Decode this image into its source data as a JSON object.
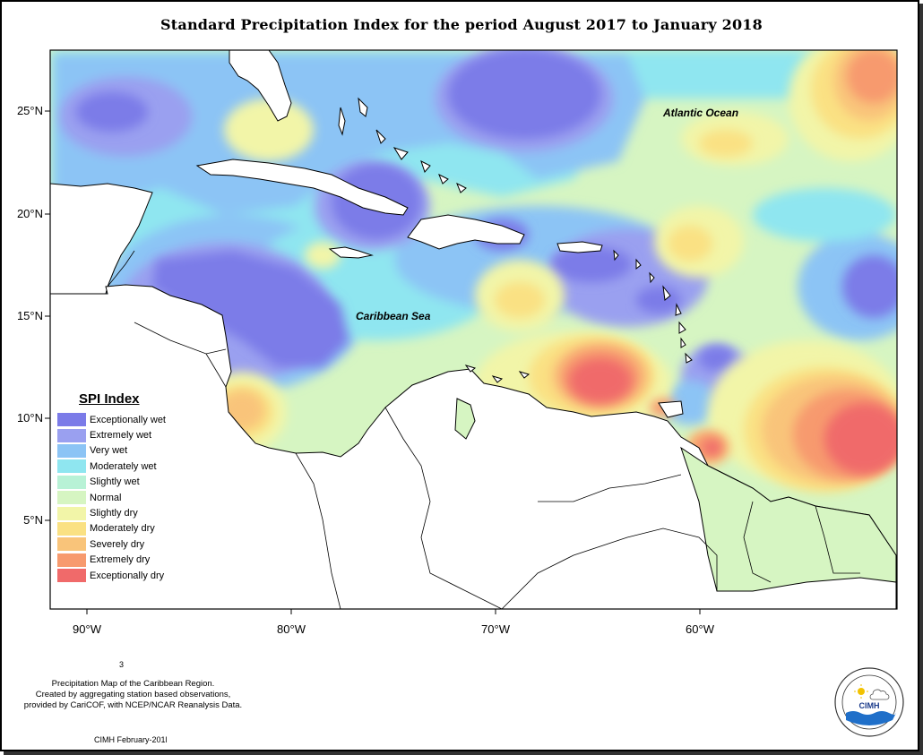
{
  "title": "Standard Precipitation Index for the period August 2017 to January 2018",
  "axes": {
    "y_ticks": [
      "25°N",
      "20°N",
      "15°N",
      "10°N",
      "5°N"
    ],
    "x_ticks": [
      "90°W",
      "80°W",
      "70°W",
      "60°W"
    ]
  },
  "map_labels": {
    "atlantic": "Atlantic Ocean",
    "caribbean": "Caribbean Sea"
  },
  "legend": {
    "title": "SPI Index",
    "items": [
      {
        "label": "Exceptionally wet",
        "color": "#7b7be8"
      },
      {
        "label": "Extremely wet",
        "color": "#9aa0f0"
      },
      {
        "label": "Very wet",
        "color": "#8cc4f5"
      },
      {
        "label": "Moderately wet",
        "color": "#8fe6f0"
      },
      {
        "label": "Slightly wet",
        "color": "#b8f2d6"
      },
      {
        "label": "Normal",
        "color": "#d6f5c2"
      },
      {
        "label": "Slightly dry",
        "color": "#f2f5a8"
      },
      {
        "label": "Moderately dry",
        "color": "#fae183"
      },
      {
        "label": "Severely dry",
        "color": "#f9c47a"
      },
      {
        "label": "Extremely dry",
        "color": "#f79a6e"
      },
      {
        "label": "Exceptionally dry",
        "color": "#f06a6a"
      }
    ]
  },
  "footnote": {
    "line1": "Precipitation Map of the Caribbean Region.",
    "line2": "Created by aggregating station based observations,",
    "line3": "provided by CariCOF, with NCEP/NCAR Reanalysis Data."
  },
  "small_mark": "3",
  "credit": "CIMH February-201l",
  "logo": {
    "text": "CIMH",
    "icon": "cimh-logo-icon"
  }
}
